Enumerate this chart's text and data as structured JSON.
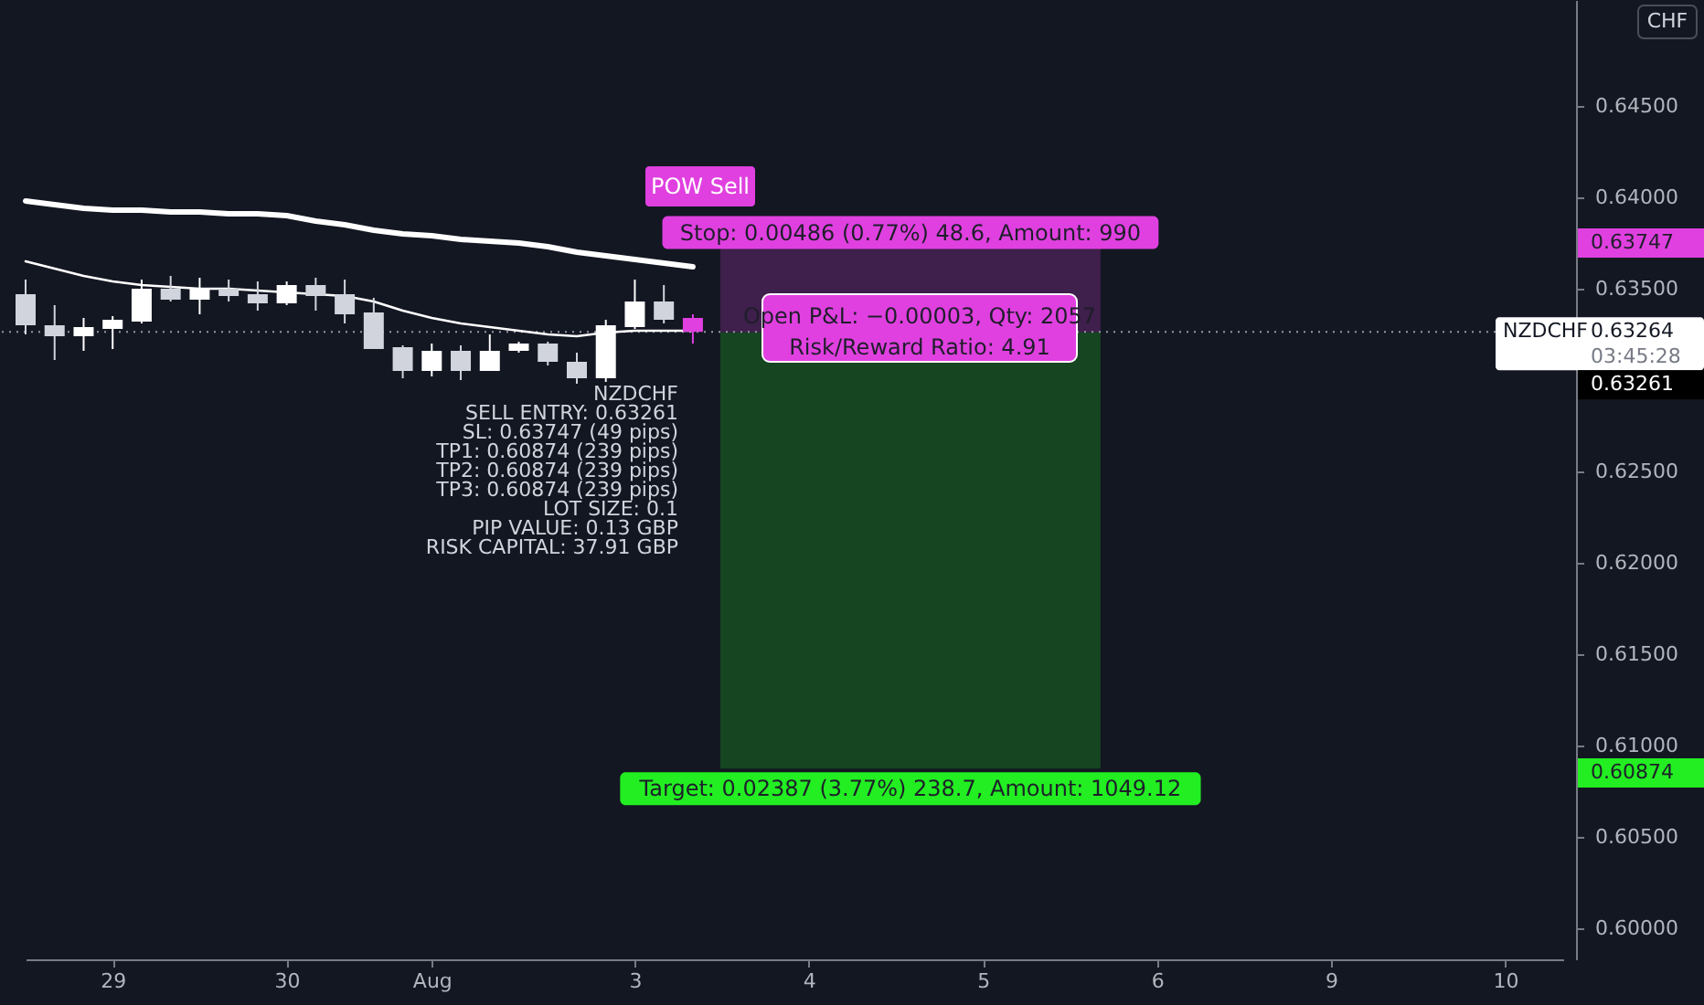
{
  "chart_data": {
    "type": "candlestick",
    "categories": [
      null,
      null,
      null,
      "29",
      null,
      null,
      null,
      null,
      null,
      "30",
      null,
      null,
      null,
      null,
      "Aug",
      null,
      null,
      null,
      null,
      null,
      null,
      "3",
      null,
      null,
      null,
      null,
      null,
      "4",
      null,
      null,
      null,
      null,
      null,
      "5",
      null,
      null,
      null,
      null,
      null,
      "6",
      null,
      null,
      null,
      null,
      null,
      "9",
      null,
      null,
      null,
      null,
      null,
      "10",
      null,
      null
    ],
    "ohlc": [
      [
        0.6347,
        0.6355,
        0.6325,
        0.633
      ],
      [
        0.633,
        0.6341,
        0.6311,
        0.6324
      ],
      [
        0.6324,
        0.6334,
        0.6316,
        0.6329
      ],
      [
        0.6328,
        0.6335,
        0.6317,
        0.6333
      ],
      [
        0.6332,
        0.6355,
        0.6331,
        0.635
      ],
      [
        0.635,
        0.6357,
        0.6343,
        0.6344
      ],
      [
        0.6344,
        0.6356,
        0.6336,
        0.635
      ],
      [
        0.635,
        0.6355,
        0.6343,
        0.6346
      ],
      [
        0.6347,
        0.6354,
        0.6338,
        0.6342
      ],
      [
        0.6342,
        0.6354,
        0.6341,
        0.6352
      ],
      [
        0.6352,
        0.6356,
        0.6338,
        0.6346
      ],
      [
        0.6347,
        0.6355,
        0.6331,
        0.6336
      ],
      [
        0.6337,
        0.6345,
        0.6317,
        0.6317
      ],
      [
        0.6318,
        0.6319,
        0.6301,
        0.6305
      ],
      [
        0.6305,
        0.632,
        0.6302,
        0.6316
      ],
      [
        0.6316,
        0.6319,
        0.63,
        0.6305
      ],
      [
        0.6305,
        0.6325,
        0.6305,
        0.6316
      ],
      [
        0.6316,
        0.6321,
        0.6315,
        0.632
      ],
      [
        0.632,
        0.6321,
        0.6308,
        0.631
      ],
      [
        0.631,
        0.6315,
        0.6298,
        0.6301
      ],
      [
        0.6301,
        0.6333,
        0.6299,
        0.633
      ],
      [
        0.6329,
        0.6355,
        0.6328,
        0.6343
      ],
      [
        0.6343,
        0.6352,
        0.6331,
        0.6333
      ],
      [
        0.6334,
        0.6336,
        0.632,
        0.63264
      ],
      null,
      null,
      null,
      null,
      null,
      null,
      null,
      null,
      null,
      null,
      null,
      null,
      null,
      null,
      null,
      null,
      null,
      null,
      null,
      null,
      null,
      null,
      null,
      null,
      null,
      null,
      null,
      null,
      null,
      null
    ],
    "colors": [
      "#d1d4dc",
      "#d1d4dc",
      "#ffffff",
      "#ffffff",
      "#ffffff",
      "#d1d4dc",
      "#ffffff",
      "#d1d4dc",
      "#d1d4dc",
      "#ffffff",
      "#d1d4dc",
      "#d1d4dc",
      "#d1d4dc",
      "#d1d4dc",
      "#ffffff",
      "#d1d4dc",
      "#ffffff",
      "#ffffff",
      "#d1d4dc",
      "#d1d4dc",
      "#ffffff",
      "#ffffff",
      "#d1d4dc",
      "#e040e0",
      null,
      null,
      null,
      null,
      null,
      null,
      null,
      null,
      null,
      null,
      null,
      null,
      null,
      null,
      null,
      null,
      null,
      null,
      null,
      null,
      null,
      null,
      null,
      null,
      null,
      null,
      null,
      null,
      null,
      null
    ],
    "series": [
      {
        "type": "line",
        "color": "#ffffff",
        "values": [
          0.6398,
          0.6396,
          0.6394,
          0.6393,
          0.6393,
          0.6392,
          0.6392,
          0.6391,
          0.6391,
          0.639,
          0.6387,
          0.6385,
          0.6382,
          0.638,
          0.6379,
          0.6377,
          0.6376,
          0.6375,
          0.6373,
          0.637,
          0.6368,
          0.6366,
          0.6364,
          0.6362,
          null,
          null,
          null,
          null,
          null,
          null,
          null,
          null,
          null,
          null,
          null,
          null,
          null,
          null,
          null,
          null,
          null,
          null,
          null,
          null,
          null,
          null,
          null,
          null,
          null,
          null,
          null,
          null,
          null,
          null
        ]
      },
      {
        "type": "line",
        "color": "#ffffff",
        "values": [
          0.6365,
          0.6361,
          0.6357,
          0.6354,
          0.6352,
          0.6351,
          0.635,
          0.635,
          0.6349,
          0.6348,
          0.6347,
          0.6346,
          0.6343,
          0.6338,
          0.6334,
          0.6331,
          0.6329,
          0.6327,
          0.6325,
          0.6324,
          0.6326,
          0.6327,
          0.6327,
          0.6327,
          null,
          null,
          null,
          null,
          null,
          null,
          null,
          null,
          null,
          null,
          null,
          null,
          null,
          null,
          null,
          null,
          null,
          null,
          null,
          null,
          null,
          null,
          null,
          null,
          null,
          null,
          null,
          null,
          null,
          null
        ]
      }
    ],
    "ylim": [
      0.5983,
      0.6508
    ],
    "yticks": [
      {
        "value": 0.6,
        "label": "0.60000"
      },
      {
        "value": 0.605,
        "label": "0.60500"
      },
      {
        "value": 0.61,
        "label": "0.61000"
      },
      {
        "value": 0.615,
        "label": "0.61500"
      },
      {
        "value": 0.62,
        "label": "0.62000"
      },
      {
        "value": 0.625,
        "label": "0.62500"
      },
      {
        "value": 0.635,
        "label": "0.63500"
      },
      {
        "value": 0.64,
        "label": "0.64000"
      },
      {
        "value": 0.645,
        "label": "0.64500"
      }
    ],
    "ref_lines": [
      {
        "axis": "y",
        "value": 0.63264,
        "label": "NZDCHF",
        "line_style": "dotted"
      }
    ],
    "bands": [
      {
        "axis": "y",
        "from": 0.63261,
        "to": 0.63747,
        "label": "Stop: 0.00486 (0.77%) 48.6, Amount: 990",
        "color": "#e040e0"
      },
      {
        "axis": "y",
        "from": 0.63261,
        "to": 0.60874,
        "label": "Target: 0.02387 (3.77%) 238.7, Amount: 1049.12",
        "color": "#22ee22"
      }
    ],
    "annotations": [
      "Open P&L: −0.00003, Qty: 2057",
      "Risk/Reward Ratio: 4.91",
      "NZDCHF",
      "SELL ENTRY: 0.63261",
      "SL: 0.63747 (49 pips)",
      "TP1: 0.60874 (239 pips)",
      "TP2: 0.60874 (239 pips)",
      "TP3: 0.60874 (239 pips)",
      "LOT SIZE: 0.1",
      "PIP VALUE: 0.13 GBP",
      "RISK CAPITAL: 37.91 GBP",
      "CHF",
      "POW Sell",
      "0.63747",
      "0.63264",
      "03:45:28",
      "0.63261",
      "0.60874"
    ]
  }
}
